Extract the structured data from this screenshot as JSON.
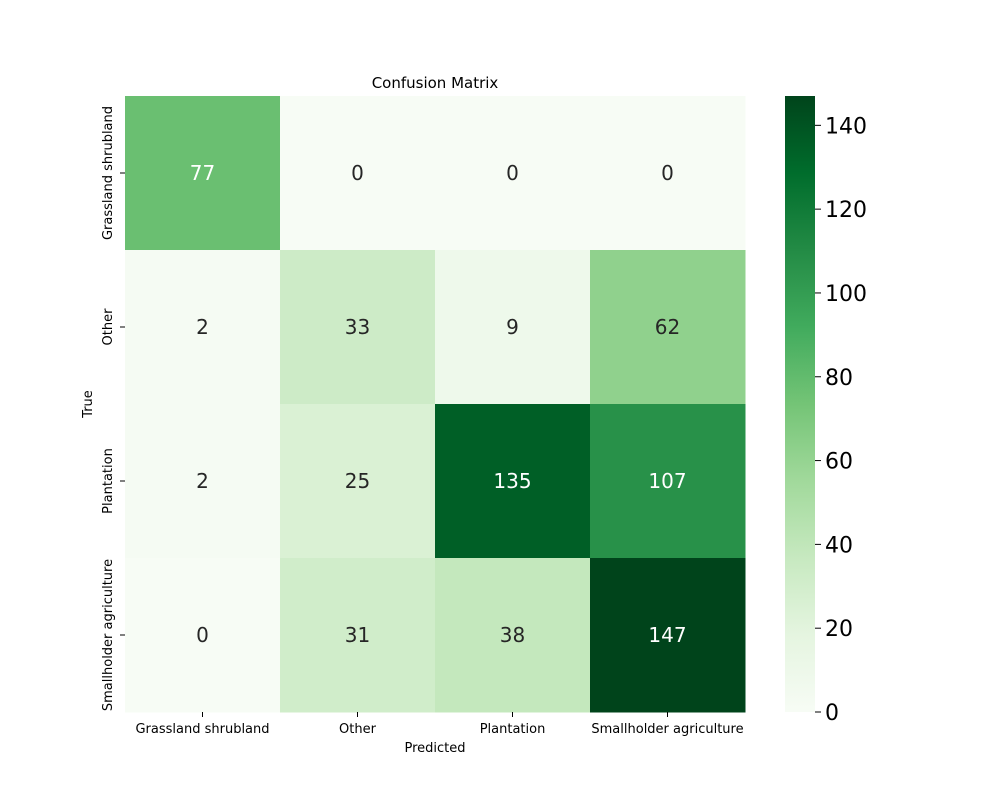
{
  "chart_data": {
    "type": "heatmap",
    "title": "Confusion Matrix",
    "xlabel": "Predicted",
    "ylabel": "True",
    "x_categories": [
      "Grassland shrubland",
      "Other",
      "Plantation",
      "Smallholder agriculture"
    ],
    "y_categories": [
      "Grassland shrubland",
      "Other",
      "Plantation",
      "Smallholder agriculture"
    ],
    "values": [
      [
        77,
        0,
        0,
        0
      ],
      [
        2,
        33,
        9,
        62
      ],
      [
        2,
        25,
        135,
        107
      ],
      [
        0,
        31,
        38,
        147
      ]
    ],
    "colormap": "Greens",
    "color_range": [
      0,
      147
    ],
    "colorbar_ticks": [
      0,
      20,
      40,
      60,
      80,
      100,
      120,
      140
    ],
    "colors": {
      "low": "#f7fcf5",
      "high": "#00441b",
      "text_dark": "#262626",
      "text_light": "#ffffff"
    }
  }
}
